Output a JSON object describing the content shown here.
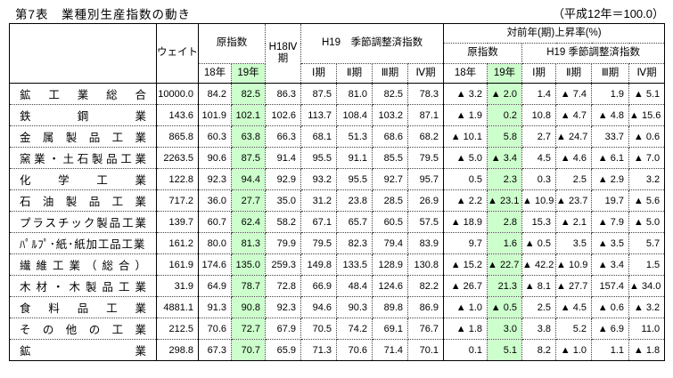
{
  "title": "第7表　業種別生産指数の動き",
  "unit_note": "（平成12年＝100.0）",
  "colors": {
    "highlight": "#ccffcc"
  },
  "table": {
    "headers": {
      "weight": "ウェイト",
      "original_index": "原指数",
      "h18q4": "H18Ⅳ期",
      "h19_seasonal": "H19　季節調整済指数",
      "yoy": "対前年(期)上昇率(%)",
      "yoy_original": "原指数",
      "yoy_seasonal": "H19 季節調整済指数",
      "y18": "18年",
      "y19": "19年",
      "q1": "Ⅰ期",
      "q2": "Ⅱ期",
      "q3": "Ⅲ期",
      "q4": "Ⅳ期"
    },
    "rows": [
      {
        "label": "鉱工業総合",
        "values": [
          "10000.0",
          "84.2",
          "82.5",
          "86.3",
          "87.5",
          "81.0",
          "82.5",
          "78.3",
          "▲ 3.2",
          "▲ 2.0",
          "1.4",
          "▲ 7.4",
          "1.9",
          "▲ 5.1"
        ]
      },
      {
        "label": "鉄鋼業",
        "values": [
          "143.6",
          "101.9",
          "102.1",
          "102.6",
          "113.7",
          "108.4",
          "103.2",
          "87.1",
          "▲ 1.9",
          "0.2",
          "10.8",
          "▲ 4.7",
          "▲ 4.8",
          "▲ 15.6"
        ]
      },
      {
        "label": "金属製品工業",
        "values": [
          "865.8",
          "60.3",
          "63.8",
          "66.3",
          "68.1",
          "51.3",
          "68.6",
          "68.2",
          "▲ 10.1",
          "5.8",
          "2.7",
          "▲ 24.7",
          "33.7",
          "▲ 0.6"
        ]
      },
      {
        "label": "窯業・土石製品工業",
        "values": [
          "2263.5",
          "90.6",
          "87.5",
          "91.4",
          "95.5",
          "91.1",
          "85.5",
          "79.5",
          "▲ 5.0",
          "▲ 3.4",
          "4.5",
          "▲ 4.6",
          "▲ 6.1",
          "▲ 7.0"
        ]
      },
      {
        "label": "化学工業",
        "values": [
          "122.8",
          "92.3",
          "94.4",
          "92.9",
          "93.2",
          "95.5",
          "92.7",
          "95.7",
          "0.5",
          "2.3",
          "0.3",
          "2.5",
          "▲ 2.9",
          "3.2"
        ]
      },
      {
        "label": "石油製品工業",
        "values": [
          "717.2",
          "36.0",
          "27.7",
          "35.0",
          "31.2",
          "23.8",
          "28.5",
          "26.9",
          "▲ 2.2",
          "▲ 23.1",
          "▲ 10.9",
          "▲ 23.7",
          "19.7",
          "▲ 5.6"
        ]
      },
      {
        "label": "プラスチック製品工業",
        "values": [
          "139.7",
          "60.7",
          "62.4",
          "58.2",
          "67.1",
          "65.7",
          "60.5",
          "57.5",
          "▲ 18.9",
          "2.8",
          "15.3",
          "▲ 2.1",
          "▲ 7.9",
          "▲ 5.0"
        ]
      },
      {
        "label": "ﾊﾟﾙﾌﾟ･紙･紙加工品工業",
        "values": [
          "161.2",
          "80.0",
          "81.3",
          "79.9",
          "79.5",
          "82.3",
          "79.4",
          "83.9",
          "9.7",
          "1.6",
          "▲ 0.5",
          "3.5",
          "▲ 3.5",
          "5.7"
        ]
      },
      {
        "label": "繊維工業（総合）",
        "values": [
          "161.9",
          "174.6",
          "135.0",
          "259.3",
          "149.8",
          "133.5",
          "128.9",
          "130.8",
          "▲ 15.2",
          "▲ 22.7",
          "▲ 42.2",
          "▲ 10.9",
          "▲ 3.4",
          "1.5"
        ]
      },
      {
        "label": "木材・木製品工業",
        "values": [
          "31.9",
          "64.9",
          "78.7",
          "72.8",
          "66.9",
          "48.4",
          "124.6",
          "82.2",
          "▲ 26.7",
          "21.3",
          "▲ 8.1",
          "▲ 27.7",
          "157.4",
          "▲ 34.0"
        ]
      },
      {
        "label": "食料品工業",
        "values": [
          "4881.1",
          "91.3",
          "90.8",
          "92.3",
          "94.6",
          "90.3",
          "89.8",
          "86.9",
          "▲ 1.0",
          "▲ 0.5",
          "2.5",
          "▲ 4.5",
          "▲ 0.6",
          "▲ 3.2"
        ]
      },
      {
        "label": "その他の工業",
        "values": [
          "212.5",
          "70.6",
          "72.7",
          "67.9",
          "70.5",
          "74.2",
          "69.1",
          "76.7",
          "▲ 1.8",
          "3.0",
          "3.8",
          "5.2",
          "▲ 6.9",
          "11.0"
        ]
      },
      {
        "label": "鉱業",
        "values": [
          "298.8",
          "67.3",
          "70.7",
          "65.9",
          "71.3",
          "70.6",
          "71.4",
          "70.1",
          "0.1",
          "5.1",
          "8.2",
          "▲ 1.0",
          "1.1",
          "▲ 1.8"
        ]
      }
    ]
  }
}
